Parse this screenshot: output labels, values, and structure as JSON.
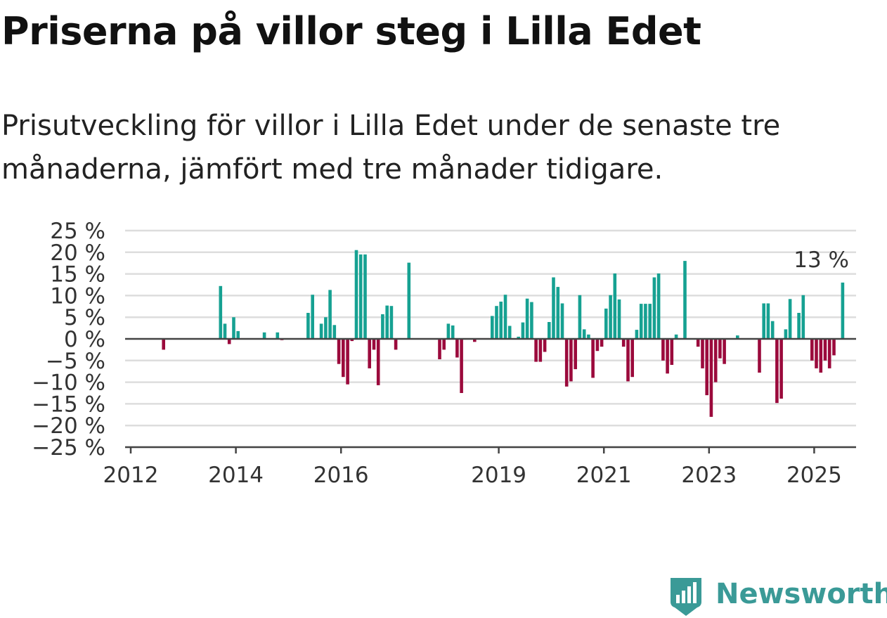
{
  "title": "Priserna på villor steg i Lilla Edet",
  "subtitle": "Prisutveckling för villor i Lilla Edet under de senaste tre månaderna, jämfört med tre månader tidigare.",
  "brand": {
    "name": "Newsworthy",
    "color": "#3a9a97",
    "icon": "newsworthy-logo-icon"
  },
  "colors": {
    "positive": "#16a192",
    "negative": "#9b0a3c",
    "grid": "#dddddd",
    "axis": "#444444"
  },
  "chart_data": {
    "type": "bar",
    "title": "",
    "xlabel": "",
    "ylabel": "",
    "ylim": [
      -25,
      25
    ],
    "y_ticks": [
      25,
      20,
      15,
      10,
      5,
      0,
      -5,
      -10,
      -15,
      -20,
      -25
    ],
    "y_tick_labels": [
      "25 %",
      "20 %",
      "15 %",
      "10 %",
      "5 %",
      "0 %",
      "−5 %",
      "−10 %",
      "−15 %",
      "−20 %",
      "−25 %"
    ],
    "x_tick_labels": [
      "2012",
      "2014",
      "2016",
      "2019",
      "2021",
      "2023",
      "2025"
    ],
    "grid": true,
    "annotation": "13 %",
    "bars": [
      [
        "2012-08",
        -2.5
      ],
      [
        "2013-09",
        12.2
      ],
      [
        "2013-10",
        3.5
      ],
      [
        "2013-11",
        -1.2
      ],
      [
        "2013-12",
        5.0
      ],
      [
        "2014-01",
        1.8
      ],
      [
        "2014-07",
        1.5
      ],
      [
        "2014-10",
        1.5
      ],
      [
        "2014-11",
        -0.3
      ],
      [
        "2015-05",
        6.0
      ],
      [
        "2015-06",
        10.2
      ],
      [
        "2015-08",
        3.5
      ],
      [
        "2015-09",
        5.0
      ],
      [
        "2015-10",
        11.3
      ],
      [
        "2015-11",
        3.2
      ],
      [
        "2015-12",
        -5.8
      ],
      [
        "2016-01",
        -8.8
      ],
      [
        "2016-02",
        -10.5
      ],
      [
        "2016-03",
        -0.5
      ],
      [
        "2016-04",
        20.5
      ],
      [
        "2016-05",
        19.5
      ],
      [
        "2016-06",
        19.5
      ],
      [
        "2016-07",
        -6.8
      ],
      [
        "2016-08",
        -2.5
      ],
      [
        "2016-09",
        -10.7
      ],
      [
        "2016-10",
        5.7
      ],
      [
        "2016-11",
        7.7
      ],
      [
        "2016-12",
        7.6
      ],
      [
        "2017-01",
        -2.5
      ],
      [
        "2017-04",
        17.6
      ],
      [
        "2017-11",
        -4.7
      ],
      [
        "2017-12",
        -2.5
      ],
      [
        "2018-01",
        3.5
      ],
      [
        "2018-02",
        3.1
      ],
      [
        "2018-03",
        -4.3
      ],
      [
        "2018-04",
        -12.5
      ],
      [
        "2018-07",
        -0.7
      ],
      [
        "2018-11",
        5.3
      ],
      [
        "2018-12",
        7.6
      ],
      [
        "2019-01",
        8.6
      ],
      [
        "2019-02",
        10.2
      ],
      [
        "2019-03",
        3.0
      ],
      [
        "2019-05",
        0.5
      ],
      [
        "2019-06",
        3.8
      ],
      [
        "2019-07",
        9.3
      ],
      [
        "2019-08",
        8.5
      ],
      [
        "2019-09",
        -5.3
      ],
      [
        "2019-10",
        -5.3
      ],
      [
        "2019-11",
        -3.0
      ],
      [
        "2019-12",
        3.9
      ],
      [
        "2020-01",
        14.2
      ],
      [
        "2020-02",
        12.0
      ],
      [
        "2020-03",
        8.2
      ],
      [
        "2020-04",
        -11.0
      ],
      [
        "2020-05",
        -9.8
      ],
      [
        "2020-06",
        -7.0
      ],
      [
        "2020-07",
        10.1
      ],
      [
        "2020-08",
        2.2
      ],
      [
        "2020-09",
        1.0
      ],
      [
        "2020-10",
        -9.0
      ],
      [
        "2020-11",
        -2.8
      ],
      [
        "2020-12",
        -1.8
      ],
      [
        "2021-01",
        7.0
      ],
      [
        "2021-02",
        10.1
      ],
      [
        "2021-03",
        15.1
      ],
      [
        "2021-04",
        9.1
      ],
      [
        "2021-05",
        -1.8
      ],
      [
        "2021-06",
        -9.8
      ],
      [
        "2021-07",
        -8.8
      ],
      [
        "2021-08",
        2.1
      ],
      [
        "2021-09",
        8.1
      ],
      [
        "2021-10",
        8.1
      ],
      [
        "2021-11",
        8.1
      ],
      [
        "2021-12",
        14.2
      ],
      [
        "2022-01",
        15.1
      ],
      [
        "2022-02",
        -5.0
      ],
      [
        "2022-03",
        -8.0
      ],
      [
        "2022-04",
        -6.0
      ],
      [
        "2022-05",
        1.0
      ],
      [
        "2022-07",
        18.0
      ],
      [
        "2022-10",
        -1.8
      ],
      [
        "2022-11",
        -6.8
      ],
      [
        "2022-12",
        -13.0
      ],
      [
        "2023-01",
        -18.0
      ],
      [
        "2023-02",
        -10.0
      ],
      [
        "2023-03",
        -4.5
      ],
      [
        "2023-04",
        -5.8
      ],
      [
        "2023-07",
        0.8
      ],
      [
        "2023-12",
        -7.8
      ],
      [
        "2024-01",
        8.2
      ],
      [
        "2024-02",
        8.2
      ],
      [
        "2024-03",
        4.1
      ],
      [
        "2024-04",
        -14.8
      ],
      [
        "2024-05",
        -13.8
      ],
      [
        "2024-06",
        2.2
      ],
      [
        "2024-07",
        9.2
      ],
      [
        "2024-09",
        6.0
      ],
      [
        "2024-10",
        10.1
      ],
      [
        "2024-12",
        -5.0
      ],
      [
        "2025-01",
        -6.8
      ],
      [
        "2025-02",
        -7.8
      ],
      [
        "2025-03",
        -5.0
      ],
      [
        "2025-04",
        -6.8
      ],
      [
        "2025-05",
        -3.8
      ],
      [
        "2025-07",
        13.0
      ]
    ]
  }
}
